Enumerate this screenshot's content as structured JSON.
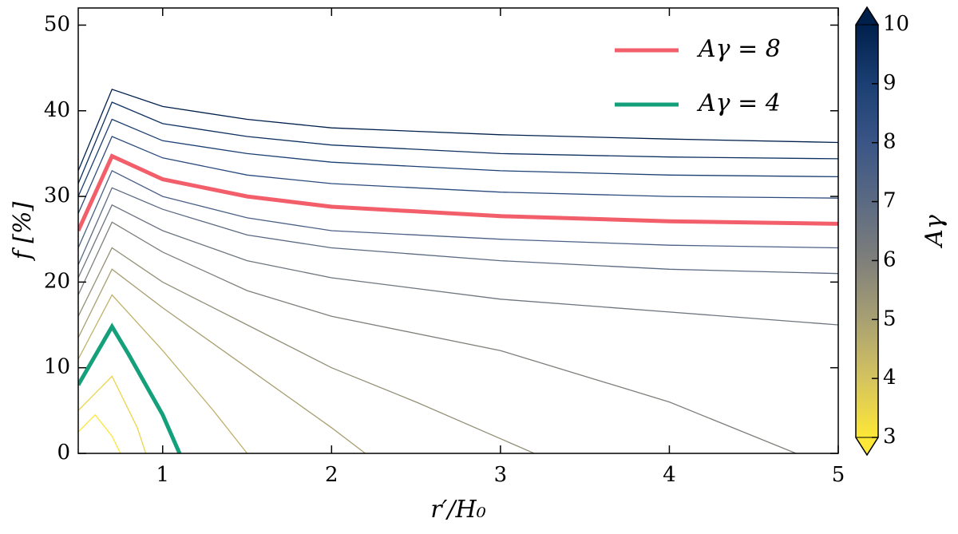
{
  "chart_data": {
    "type": "line",
    "xlabel": "r′/H₀",
    "ylabel": "f [%]",
    "xlim": [
      0.5,
      5
    ],
    "xticks": [
      1,
      2,
      3,
      4,
      5
    ],
    "ylim": [
      0,
      52
    ],
    "yticks": [
      0,
      10,
      20,
      30,
      40,
      50
    ],
    "legend": "upper right",
    "colorbar": {
      "label": "Aγ",
      "lim": [
        3,
        10
      ],
      "ticks": [
        3,
        4,
        5,
        6,
        7,
        8,
        9,
        10
      ],
      "colormap": [
        "#fde737",
        "#d4c35f",
        "#a8a073",
        "#7f7f7b",
        "#5b6a83",
        "#3a5586",
        "#1b3f73",
        "#00204c"
      ]
    },
    "curves": [
      {
        "level": 3,
        "x": [
          0.5,
          0.6,
          0.7,
          0.75
        ],
        "values": [
          2.5,
          4.5,
          2,
          0
        ]
      },
      {
        "level": 3.5,
        "x": [
          0.5,
          0.7,
          0.85,
          0.9
        ],
        "values": [
          5,
          9,
          3,
          0
        ]
      },
      {
        "level": 4.5,
        "x": [
          0.5,
          0.7,
          1,
          1.3,
          1.5
        ],
        "values": [
          11,
          18.5,
          12,
          5,
          0
        ]
      },
      {
        "level": 5,
        "x": [
          0.5,
          0.7,
          1,
          1.5,
          2,
          2.2
        ],
        "values": [
          13.5,
          21.5,
          17,
          10,
          3,
          0
        ]
      },
      {
        "level": 5.5,
        "x": [
          0.5,
          0.7,
          1,
          1.5,
          2,
          2.5,
          3.2
        ],
        "values": [
          16,
          24,
          20,
          15,
          10,
          6,
          0
        ]
      },
      {
        "level": 6,
        "x": [
          0.5,
          0.7,
          1,
          1.5,
          2,
          3,
          4,
          4.75
        ],
        "values": [
          18.5,
          27,
          23.5,
          19,
          16,
          12,
          6,
          0
        ]
      },
      {
        "level": 6.5,
        "x": [
          0.5,
          0.7,
          1,
          1.5,
          2,
          3,
          4,
          5
        ],
        "values": [
          20.5,
          29,
          26,
          22.5,
          20.5,
          18,
          16.5,
          15
        ]
      },
      {
        "level": 7,
        "x": [
          0.5,
          0.7,
          1,
          1.5,
          2,
          3,
          4,
          5
        ],
        "values": [
          22,
          31,
          28.5,
          25.5,
          24,
          22.5,
          21.5,
          21
        ]
      },
      {
        "level": 7.5,
        "x": [
          0.5,
          0.7,
          1,
          1.5,
          2,
          3,
          4,
          5
        ],
        "values": [
          24,
          33,
          30,
          27.5,
          26,
          25,
          24.3,
          24
        ]
      },
      {
        "level": 8.5,
        "x": [
          0.5,
          0.7,
          1,
          1.5,
          2,
          3,
          4,
          5
        ],
        "values": [
          28,
          37,
          34.5,
          32.5,
          31.5,
          30.5,
          30,
          29.8
        ]
      },
      {
        "level": 9,
        "x": [
          0.5,
          0.7,
          1,
          1.5,
          2,
          3,
          4,
          5
        ],
        "values": [
          30,
          39,
          36.5,
          35,
          34,
          33,
          32.5,
          32.3
        ]
      },
      {
        "level": 9.5,
        "x": [
          0.5,
          0.7,
          1,
          1.5,
          2,
          3,
          4,
          5
        ],
        "values": [
          31.5,
          41,
          38.5,
          37,
          36,
          35,
          34.6,
          34.4
        ]
      },
      {
        "level": 10,
        "x": [
          0.5,
          0.7,
          1,
          1.5,
          2,
          3,
          4,
          5
        ],
        "values": [
          33,
          42.5,
          40.5,
          39,
          38,
          37.2,
          36.7,
          36.3
        ]
      }
    ],
    "series": [
      {
        "name": "Aγ = 8",
        "color": "#f25f6b",
        "x": [
          0.5,
          0.7,
          1,
          1.5,
          2,
          3,
          4,
          5
        ],
        "values": [
          26,
          34.7,
          32,
          30,
          28.8,
          27.7,
          27.1,
          26.8
        ]
      },
      {
        "name": "Aγ = 4",
        "color": "#13a07a",
        "x": [
          0.5,
          0.7,
          0.8,
          0.9,
          1.0,
          1.1
        ],
        "values": [
          8,
          14.8,
          11.5,
          8,
          4.5,
          0
        ]
      }
    ]
  }
}
